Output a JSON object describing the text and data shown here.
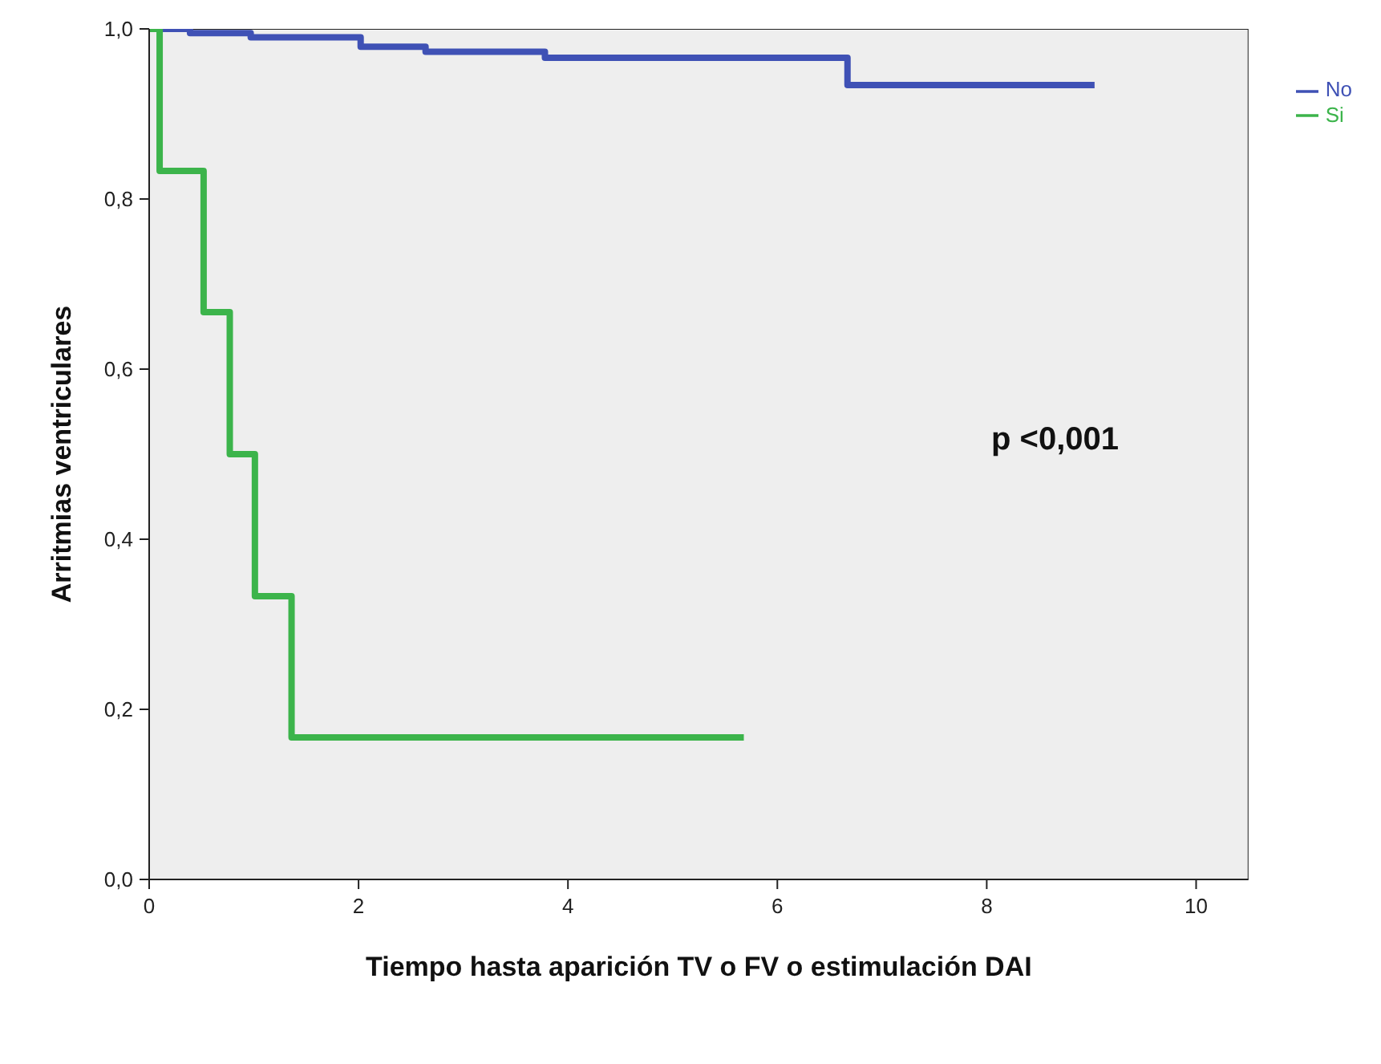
{
  "chart_data": {
    "type": "step",
    "xlabel": "Tiempo hasta aparición TV o FV o estimulación DAI",
    "ylabel": "Arritmias ventriculares",
    "annotations": [
      "p <0,001"
    ],
    "series": [
      {
        "name": "No",
        "color": "#3f51b5",
        "x": [
          0,
          0.39,
          0.97,
          2.02,
          2.64,
          3.78,
          6.67,
          9.03
        ],
        "values": [
          1,
          0.995,
          0.99,
          0.979,
          0.973,
          0.966,
          0.934,
          0.934
        ]
      },
      {
        "name": "Si",
        "color": "#3cb44b",
        "x": [
          0,
          0.1,
          0.52,
          0.77,
          1.01,
          1.36,
          5.68
        ],
        "values": [
          1,
          0.833,
          0.667,
          0.5,
          0.333,
          0.167,
          0.167
        ]
      }
    ],
    "xlim": [
      0,
      10.5
    ],
    "xticks": [
      0,
      2,
      4,
      6,
      8,
      10
    ],
    "ylim": [
      0,
      1
    ],
    "yticks": [
      {
        "value": 0,
        "label": "0,0"
      },
      {
        "value": 0.2,
        "label": "0,2"
      },
      {
        "value": 0.4,
        "label": "0,4"
      },
      {
        "value": 0.6,
        "label": "0,6"
      },
      {
        "value": 0.8,
        "label": "0,8"
      },
      {
        "value": 1,
        "label": "1,0"
      }
    ],
    "legend": "top right",
    "marker": "none",
    "line_style": "solid",
    "grid": false
  }
}
